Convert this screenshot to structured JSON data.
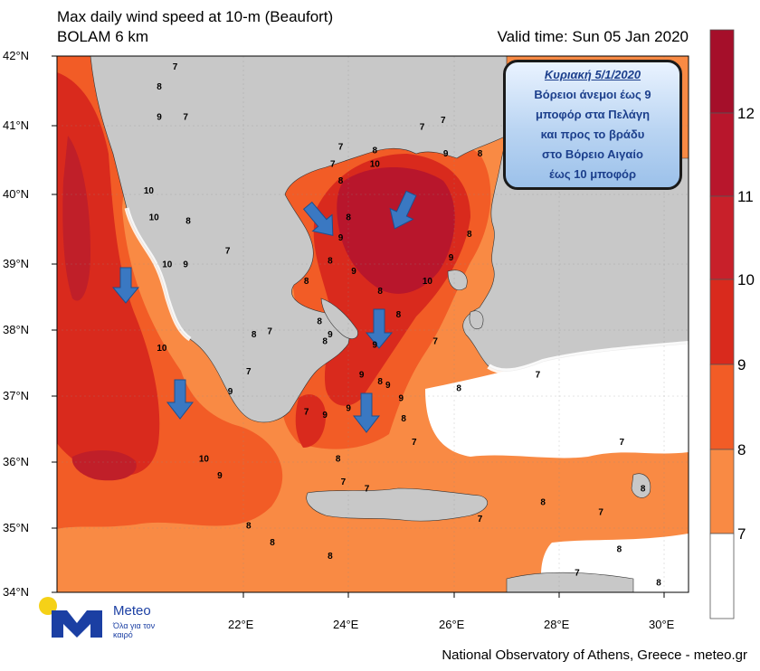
{
  "header": {
    "title": "Max daily wind speed at 10-m (Beaufort)",
    "model": "BOLAM 6 km",
    "valid_time": "Valid time: Sun 05 Jan 2020"
  },
  "axes": {
    "latitudes": [
      "42°N",
      "41°N",
      "40°N",
      "39°N",
      "38°N",
      "37°N",
      "36°N",
      "35°N",
      "34°N"
    ],
    "longitudes": [
      "22°E",
      "24°E",
      "26°E",
      "28°E",
      "30°E"
    ]
  },
  "legend": {
    "labels": [
      "12",
      "11",
      "10",
      "9",
      "8",
      "7"
    ],
    "colors": [
      "#a50f2a",
      "#b8162c",
      "#d92a1d",
      "#f25c26",
      "#f98a44",
      "#ffffff"
    ]
  },
  "forecast_box": {
    "date": "Κυριακή 5/1/2020",
    "lines": [
      "Βόρειοι άνεμοι έως 9",
      "μποφόρ στα Πελάγη",
      "και προς το βράδυ",
      "στο Βόρειο Αιγαίο",
      "έως 10 μποφόρ"
    ]
  },
  "contour_labels": [
    {
      "text": "7",
      "lon": 20.7,
      "lat": 41.8
    },
    {
      "text": "8",
      "lon": 20.4,
      "lat": 41.5
    },
    {
      "text": "9",
      "lon": 20.4,
      "lat": 41.05
    },
    {
      "text": "7",
      "lon": 20.9,
      "lat": 41.05
    },
    {
      "text": "10",
      "lon": 20.2,
      "lat": 39.95
    },
    {
      "text": "10",
      "lon": 20.3,
      "lat": 39.55
    },
    {
      "text": "8",
      "lon": 20.95,
      "lat": 39.5
    },
    {
      "text": "10",
      "lon": 20.55,
      "lat": 38.85
    },
    {
      "text": "9",
      "lon": 20.9,
      "lat": 38.85
    },
    {
      "text": "7",
      "lon": 21.7,
      "lat": 39.05
    },
    {
      "text": "10",
      "lon": 20.45,
      "lat": 37.6
    },
    {
      "text": "8",
      "lon": 22.2,
      "lat": 37.8
    },
    {
      "text": "7",
      "lon": 22.5,
      "lat": 37.85
    },
    {
      "text": "7",
      "lon": 22.1,
      "lat": 37.25
    },
    {
      "text": "9",
      "lon": 21.75,
      "lat": 36.95
    },
    {
      "text": "7",
      "lon": 23.2,
      "lat": 36.65
    },
    {
      "text": "10",
      "lon": 21.25,
      "lat": 35.95
    },
    {
      "text": "9",
      "lon": 21.55,
      "lat": 35.7
    },
    {
      "text": "8",
      "lon": 23.8,
      "lat": 35.95
    },
    {
      "text": "7",
      "lon": 23.9,
      "lat": 35.6
    },
    {
      "text": "7",
      "lon": 24.35,
      "lat": 35.5
    },
    {
      "text": "8",
      "lon": 22.1,
      "lat": 34.95
    },
    {
      "text": "8",
      "lon": 22.55,
      "lat": 34.7
    },
    {
      "text": "8",
      "lon": 23.65,
      "lat": 34.5
    },
    {
      "text": "9",
      "lon": 24.0,
      "lat": 36.7
    },
    {
      "text": "9",
      "lon": 23.55,
      "lat": 36.6
    },
    {
      "text": "9",
      "lon": 23.65,
      "lat": 37.8
    },
    {
      "text": "8",
      "lon": 23.55,
      "lat": 37.7
    },
    {
      "text": "8",
      "lon": 23.45,
      "lat": 38.0
    },
    {
      "text": "8",
      "lon": 23.2,
      "lat": 38.6
    },
    {
      "text": "9",
      "lon": 24.25,
      "lat": 37.2
    },
    {
      "text": "8",
      "lon": 24.6,
      "lat": 37.1
    },
    {
      "text": "9",
      "lon": 24.5,
      "lat": 37.65
    },
    {
      "text": "9",
      "lon": 24.75,
      "lat": 37.05
    },
    {
      "text": "9",
      "lon": 25.0,
      "lat": 36.85
    },
    {
      "text": "8",
      "lon": 25.05,
      "lat": 36.55
    },
    {
      "text": "7",
      "lon": 25.25,
      "lat": 36.2
    },
    {
      "text": "8",
      "lon": 24.95,
      "lat": 38.1
    },
    {
      "text": "7",
      "lon": 25.65,
      "lat": 37.7
    },
    {
      "text": "8",
      "lon": 26.1,
      "lat": 37.0
    },
    {
      "text": "8",
      "lon": 24.6,
      "lat": 38.45
    },
    {
      "text": "9",
      "lon": 24.1,
      "lat": 38.75
    },
    {
      "text": "8",
      "lon": 23.65,
      "lat": 38.9
    },
    {
      "text": "8",
      "lon": 24.0,
      "lat": 39.55
    },
    {
      "text": "9",
      "lon": 23.85,
      "lat": 39.25
    },
    {
      "text": "8",
      "lon": 23.85,
      "lat": 40.1
    },
    {
      "text": "7",
      "lon": 23.7,
      "lat": 40.35
    },
    {
      "text": "7",
      "lon": 23.85,
      "lat": 40.6
    },
    {
      "text": "8",
      "lon": 24.5,
      "lat": 40.55
    },
    {
      "text": "10",
      "lon": 24.5,
      "lat": 40.35
    },
    {
      "text": "9",
      "lon": 25.85,
      "lat": 40.5
    },
    {
      "text": "8",
      "lon": 26.5,
      "lat": 40.5
    },
    {
      "text": "7",
      "lon": 25.4,
      "lat": 40.9
    },
    {
      "text": "7",
      "lon": 25.8,
      "lat": 41.0
    },
    {
      "text": "10",
      "lon": 25.5,
      "lat": 38.6
    },
    {
      "text": "9",
      "lon": 25.95,
      "lat": 38.95
    },
    {
      "text": "8",
      "lon": 26.3,
      "lat": 39.3
    },
    {
      "text": "7",
      "lon": 27.6,
      "lat": 37.2
    },
    {
      "text": "7",
      "lon": 29.2,
      "lat": 36.2
    },
    {
      "text": "7",
      "lon": 26.5,
      "lat": 35.05
    },
    {
      "text": "8",
      "lon": 27.7,
      "lat": 35.3
    },
    {
      "text": "8",
      "lon": 29.6,
      "lat": 35.5
    },
    {
      "text": "7",
      "lon": 28.8,
      "lat": 35.15
    },
    {
      "text": "8",
      "lon": 29.15,
      "lat": 34.6
    },
    {
      "text": "7",
      "lon": 28.35,
      "lat": 34.25
    },
    {
      "text": "8",
      "lon": 29.9,
      "lat": 34.1
    }
  ],
  "footer": "National Observatory of Athens, Greece - meteo.gr",
  "logo": {
    "name": "Meteo",
    "tagline": "Όλα για τον καιρό"
  }
}
